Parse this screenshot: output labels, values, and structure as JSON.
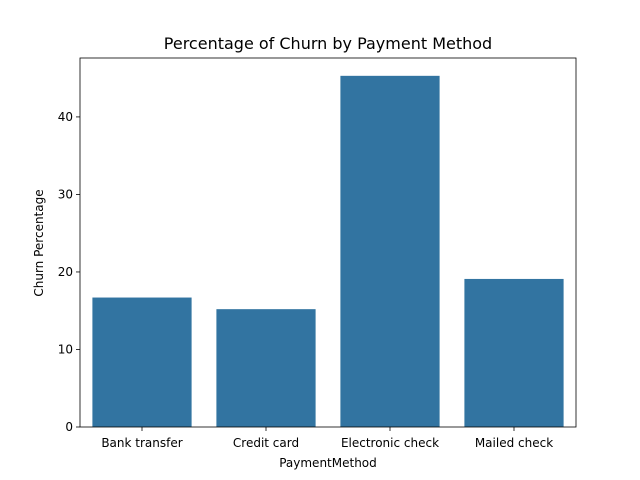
{
  "chart_data": {
    "type": "bar",
    "title": "Percentage of Churn by Payment Method",
    "xlabel": "PaymentMethod",
    "ylabel": "Churn Percentage",
    "categories": [
      "Bank transfer",
      "Credit card",
      "Electronic check",
      "Mailed check"
    ],
    "values": [
      16.7,
      15.2,
      45.3,
      19.1
    ],
    "ylim": [
      0,
      47.6
    ],
    "yticks": [
      0,
      10,
      20,
      30,
      40
    ],
    "grid": false,
    "bar_color": "#3274a1"
  }
}
